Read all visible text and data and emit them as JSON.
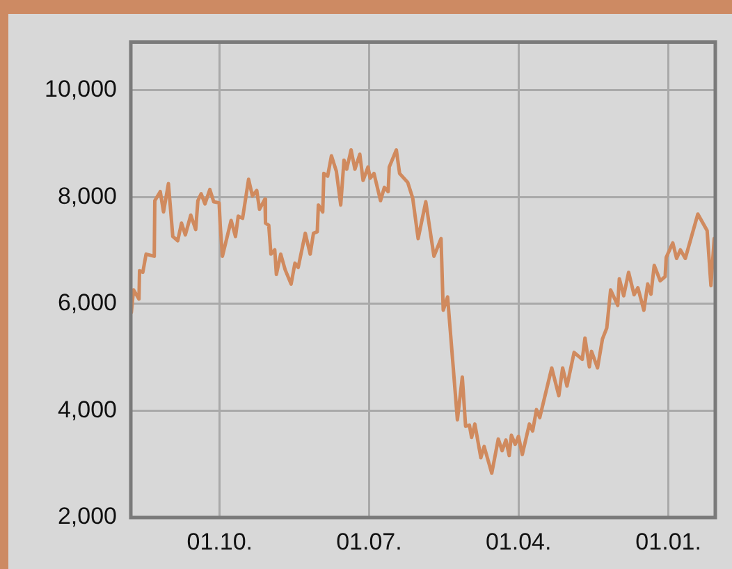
{
  "chart_data": {
    "type": "line",
    "x": [
      "2007-04-22",
      "2007-04-26",
      "2007-05-06",
      "2007-05-07",
      "2007-05-13",
      "2007-05-19",
      "2007-06-03",
      "2007-06-04",
      "2007-06-14",
      "2007-06-20",
      "2007-06-29",
      "2007-07-07",
      "2007-07-16",
      "2007-07-23",
      "2007-07-30",
      "2007-08-09",
      "2007-08-18",
      "2007-08-22",
      "2007-08-28",
      "2007-09-04",
      "2007-09-13",
      "2007-09-20",
      "2007-09-30",
      "2007-10-02",
      "2007-10-06",
      "2007-10-22",
      "2007-10-30",
      "2007-11-04",
      "2007-11-12",
      "2007-11-23",
      "2007-11-30",
      "2007-12-08",
      "2007-12-13",
      "2007-12-23",
      "2007-12-24",
      "2007-12-30",
      "2008-01-03",
      "2008-01-10",
      "2008-01-13",
      "2008-01-21",
      "2008-01-29",
      "2008-02-09",
      "2008-02-16",
      "2008-02-22",
      "2008-03-06",
      "2008-03-15",
      "2008-03-21",
      "2008-03-28",
      "2008-03-30",
      "2008-04-07",
      "2008-04-09",
      "2008-04-16",
      "2008-04-23",
      "2008-05-02",
      "2008-05-10",
      "2008-05-16",
      "2008-05-21",
      "2008-05-29",
      "2008-06-05",
      "2008-06-14",
      "2008-06-20",
      "2008-06-29",
      "2008-07-03",
      "2008-07-10",
      "2008-07-22",
      "2008-07-29",
      "2008-08-05",
      "2008-08-07",
      "2008-08-20",
      "2008-08-26",
      "2008-09-10",
      "2008-09-19",
      "2008-09-29",
      "2008-10-13",
      "2008-10-28",
      "2008-11-10",
      "2008-11-14",
      "2008-11-22",
      "2008-12-10",
      "2008-12-19",
      "2008-12-25",
      "2009-01-01",
      "2009-01-05",
      "2009-01-11",
      "2009-01-22",
      "2009-01-28",
      "2009-02-11",
      "2009-02-23",
      "2009-03-02",
      "2009-03-09",
      "2009-03-15",
      "2009-03-19",
      "2009-03-26",
      "2009-04-01",
      "2009-04-08",
      "2009-04-21",
      "2009-04-27",
      "2009-05-04",
      "2009-05-10",
      "2009-06-01",
      "2009-06-14",
      "2009-06-21",
      "2009-06-29",
      "2009-07-12",
      "2009-07-27",
      "2009-08-01",
      "2009-08-09",
      "2009-08-13",
      "2009-08-24",
      "2009-09-02",
      "2009-09-10",
      "2009-09-17",
      "2009-09-30",
      "2009-10-03",
      "2009-10-11",
      "2009-10-20",
      "2009-10-30",
      "2009-11-06",
      "2009-11-17",
      "2009-11-24",
      "2009-11-30",
      "2009-12-06",
      "2009-12-17",
      "2009-12-26",
      "2009-12-28",
      "2010-01-09",
      "2010-01-16",
      "2010-01-23",
      "2010-02-01",
      "2010-02-24",
      "2010-03-13",
      "2010-03-20",
      "2010-03-26"
    ],
    "series": [
      {
        "color": "#d08a5e",
        "values": [
          5840,
          6260,
          6090,
          6620,
          6590,
          6930,
          6890,
          7930,
          8100,
          7720,
          8250,
          7260,
          7180,
          7510,
          7290,
          7660,
          7390,
          7930,
          8060,
          7870,
          8140,
          7910,
          7890,
          7470,
          6890,
          7560,
          7260,
          7640,
          7600,
          8330,
          8020,
          8120,
          7770,
          7960,
          7510,
          7470,
          6930,
          7010,
          6550,
          6930,
          6640,
          6370,
          6760,
          6680,
          7320,
          6930,
          7320,
          7350,
          7850,
          7720,
          8440,
          8390,
          8770,
          8480,
          7850,
          8690,
          8520,
          8880,
          8520,
          8800,
          8310,
          8560,
          8350,
          8440,
          7930,
          8180,
          8100,
          8560,
          8880,
          8440,
          8270,
          7980,
          7220,
          7910,
          6890,
          7220,
          5880,
          6130,
          3830,
          4630,
          3710,
          3730,
          3500,
          3750,
          3120,
          3330,
          2830,
          3470,
          3250,
          3450,
          3160,
          3540,
          3370,
          3520,
          3180,
          3750,
          3620,
          4020,
          3870,
          4800,
          4280,
          4800,
          4460,
          5090,
          4960,
          5360,
          4820,
          5110,
          4800,
          5340,
          5550,
          6260,
          5970,
          6470,
          6150,
          6590,
          6170,
          6300,
          5880,
          6370,
          6180,
          6720,
          6430,
          6510,
          6870,
          7140,
          6850,
          7010,
          6850,
          7680,
          7370,
          6340,
          7220
        ]
      }
    ],
    "xlim": [
      "2007-04-21",
      "2010-03-28"
    ],
    "xticks": [
      {
        "value": "2007-10-01",
        "label": "01.10."
      },
      {
        "value": "2008-07-01",
        "label": "01.07."
      },
      {
        "value": "2009-04-01",
        "label": "01.04."
      },
      {
        "value": "2010-01-01",
        "label": "01.01."
      }
    ],
    "ylim": [
      2000,
      10900
    ],
    "yticks": [
      {
        "value": 2000,
        "label": "2,000"
      },
      {
        "value": 4000,
        "label": "4,000"
      },
      {
        "value": 6000,
        "label": "6,000"
      },
      {
        "value": 8000,
        "label": "8,000"
      },
      {
        "value": 10000,
        "label": "10,000"
      }
    ],
    "grid": true,
    "marker": "none",
    "line_style": "solid"
  }
}
